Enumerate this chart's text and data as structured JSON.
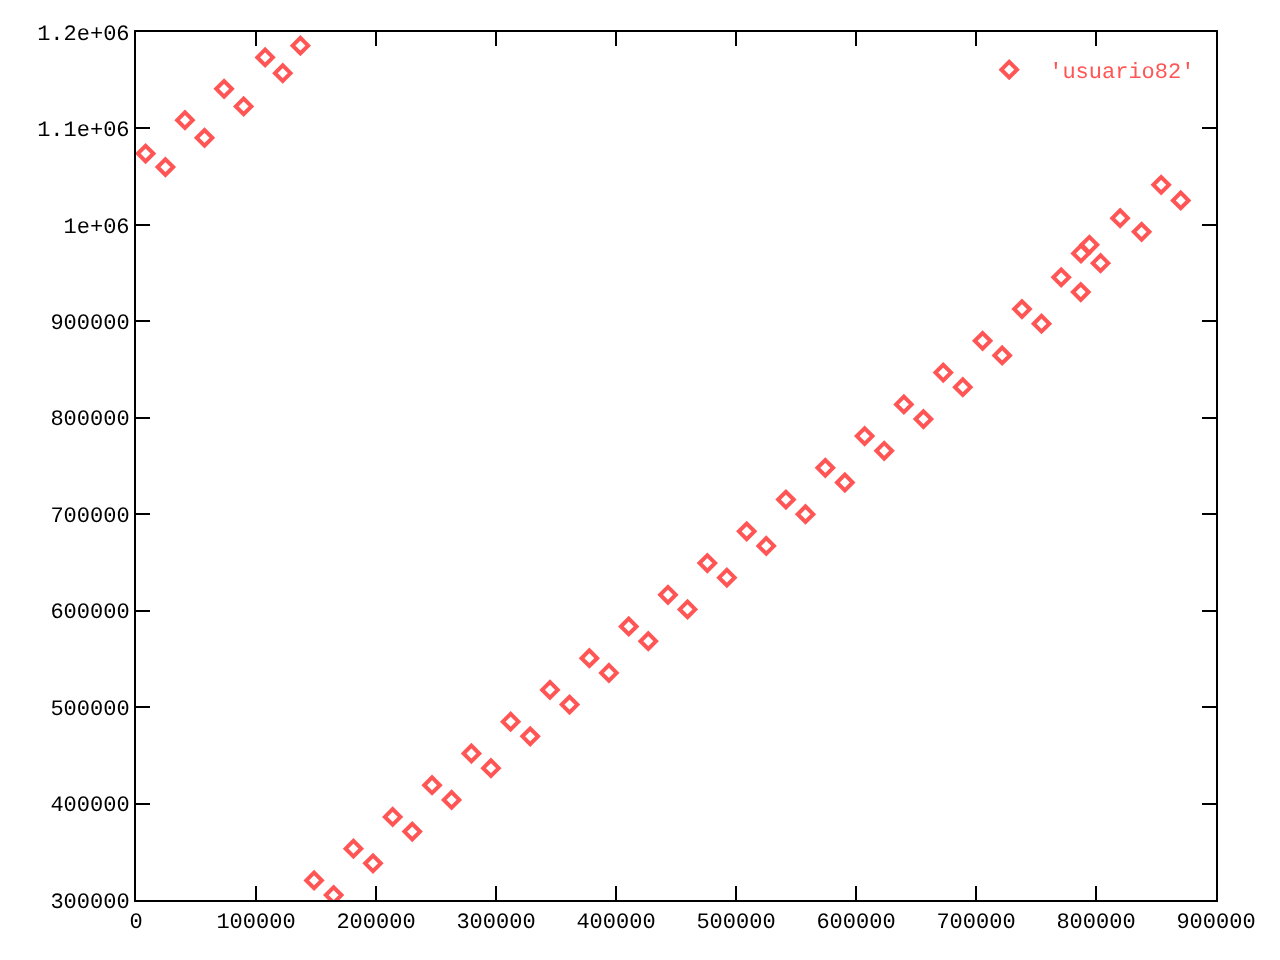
{
  "chart_data": {
    "type": "scatter",
    "legend": "top right",
    "marker": "diamond",
    "xlim": [
      0,
      900000
    ],
    "ylim": [
      300000,
      1200000
    ],
    "xticks": [
      0,
      100000,
      200000,
      300000,
      400000,
      500000,
      600000,
      700000,
      800000,
      900000
    ],
    "yticks": [
      300000,
      400000,
      500000,
      600000,
      700000,
      800000,
      900000,
      {
        "value": 1000000,
        "label": "1e+06"
      },
      {
        "value": 1100000,
        "label": "1.1e+06"
      },
      {
        "value": 1200000,
        "label": "1.2e+06"
      }
    ],
    "series": [
      {
        "name": "'usuario82'",
        "color": "#ff5555",
        "x": [
          8000,
          24500,
          40800,
          57100,
          73400,
          89700,
          107600,
          122300,
          137000,
          148400,
          164700,
          181200,
          197500,
          213900,
          230200,
          246700,
          263000,
          279500,
          295800,
          312200,
          328500,
          345000,
          361300,
          377800,
          394100,
          410600,
          426900,
          443300,
          459600,
          476100,
          492400,
          508900,
          525200,
          541600,
          557900,
          574400,
          590700,
          607200,
          623500,
          639900,
          656200,
          672700,
          689000,
          705500,
          721800,
          738300,
          754600,
          771000,
          787300,
          787500,
          794500,
          803800,
          820100,
          838000,
          854300,
          870600
        ],
        "values": [
          1074000,
          1060000,
          1108600,
          1090300,
          1141100,
          1122800,
          1173600,
          1157300,
          1185800,
          320300,
          305100,
          353200,
          338000,
          386100,
          370900,
          419000,
          403800,
          451900,
          436700,
          484900,
          469700,
          517800,
          502600,
          550700,
          535500,
          583600,
          568400,
          616500,
          601300,
          649400,
          634200,
          682300,
          667100,
          715200,
          700000,
          748100,
          732900,
          781000,
          765800,
          813900,
          798700,
          846900,
          831700,
          879800,
          864600,
          912700,
          897500,
          945600,
          930400,
          970400,
          979400,
          960300,
          1007000,
          992800,
          1041500,
          1025300
        ]
      }
    ]
  }
}
